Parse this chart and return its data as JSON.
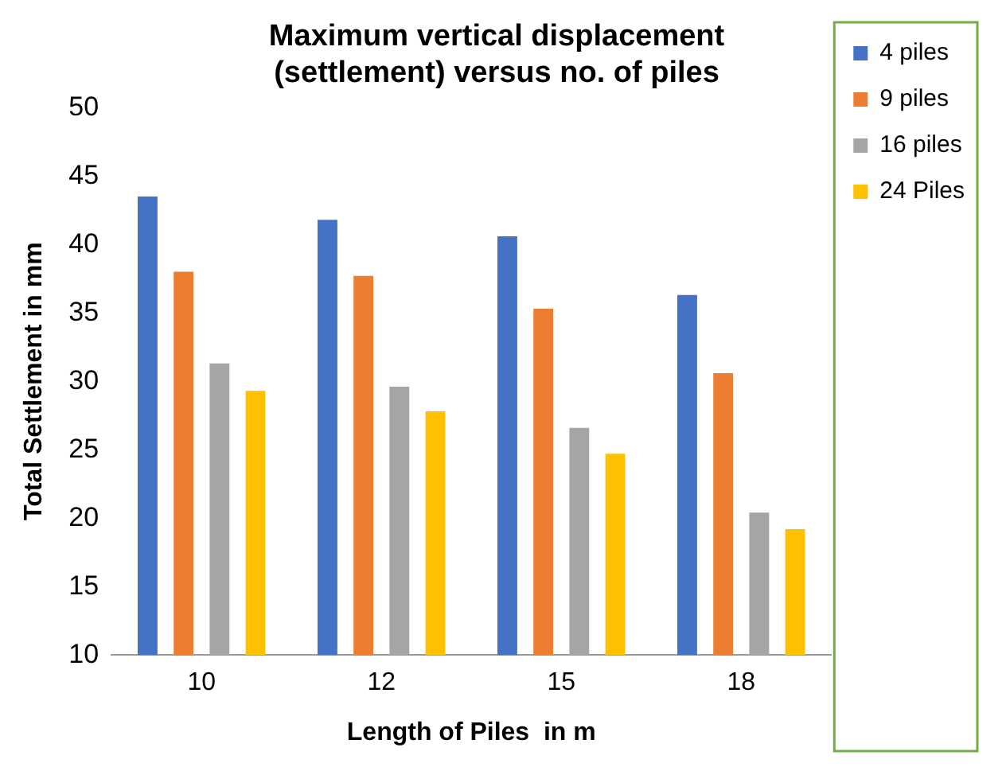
{
  "chart_data": {
    "type": "bar",
    "title": "Maximum vertical displacement (settlement) versus no. of piles",
    "xlabel": "Length of Piles  in m",
    "ylabel": "Total Settlement in mm",
    "categories": [
      "10",
      "12",
      "15",
      "18"
    ],
    "series": [
      {
        "name": "4 piles",
        "color": "#4472c4",
        "values": [
          43.5,
          41.8,
          40.6,
          36.3
        ]
      },
      {
        "name": "9 piles",
        "color": "#ed7d31",
        "values": [
          38,
          37.7,
          35.3,
          30.6
        ]
      },
      {
        "name": "16 piles",
        "color": "#a5a5a5",
        "values": [
          31.3,
          29.6,
          26.6,
          20.4
        ]
      },
      {
        "name": "24 Piles",
        "color": "#ffc000",
        "values": [
          29.3,
          27.8,
          24.7,
          19.2
        ]
      }
    ],
    "ylim": [
      10,
      50
    ],
    "yticks": [
      10,
      15,
      20,
      25,
      30,
      35,
      40,
      45,
      50
    ],
    "grid": false,
    "legend": "top right"
  }
}
